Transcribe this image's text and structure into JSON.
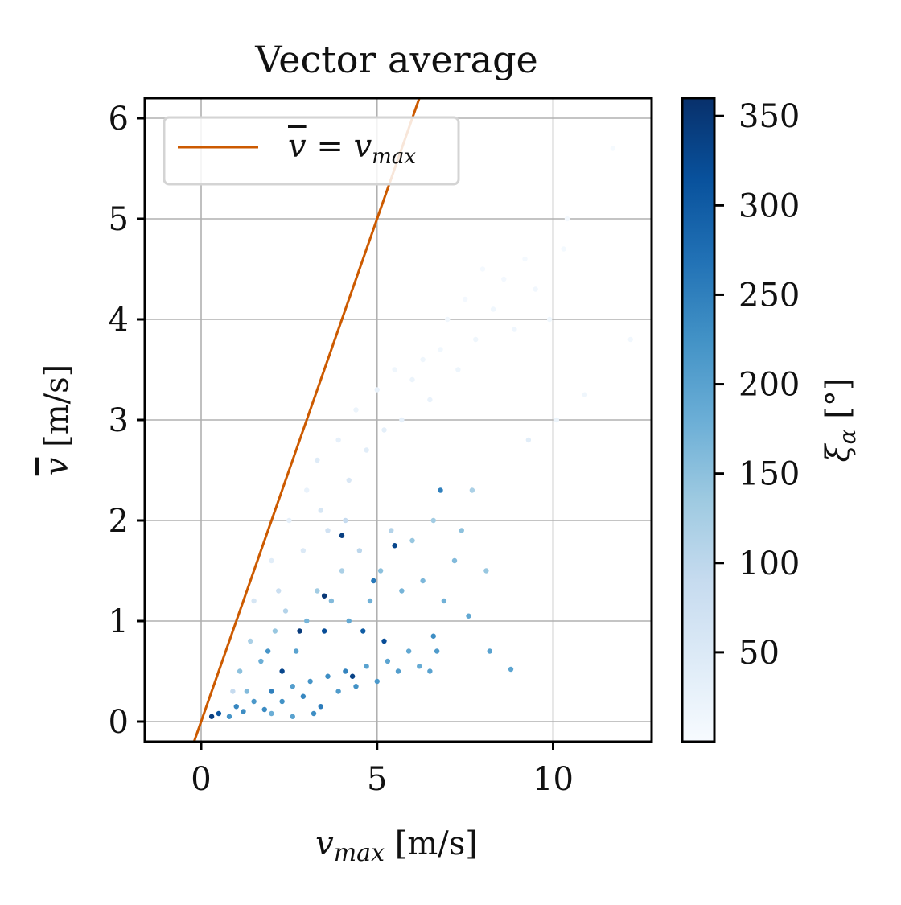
{
  "chart_data": {
    "type": "scatter",
    "title": "Vector average",
    "xlabel": "v_max [m/s]",
    "ylabel": "v̄ [m/s]",
    "xlim": [
      -1.6,
      12.8
    ],
    "ylim": [
      -0.2,
      6.2
    ],
    "xticks": [
      0,
      5,
      10
    ],
    "yticks": [
      0,
      1,
      2,
      3,
      4,
      5,
      6
    ],
    "grid": true,
    "legend": {
      "position": "top-left",
      "entries": [
        {
          "label": "v̄ = v_max",
          "color": "#cc5a00"
        }
      ]
    },
    "reference_line": {
      "name": "v̄ = v_max",
      "slope": 1,
      "intercept": 0,
      "color": "#cc5a00"
    },
    "colorbar": {
      "label": "ξ_α [°]",
      "range": [
        0,
        360
      ],
      "ticks": [
        50,
        100,
        150,
        200,
        250,
        300,
        350
      ],
      "colormap": "Blues",
      "stops": [
        "#f7fbff",
        "#deebf7",
        "#c6dbef",
        "#9ecae1",
        "#6baed6",
        "#4292c6",
        "#2171b5",
        "#08519c",
        "#08306b"
      ]
    },
    "series": [
      {
        "name": "samples",
        "points": [
          [
            0.3,
            0.05,
            340
          ],
          [
            0.5,
            0.08,
            310
          ],
          [
            0.8,
            0.05,
            220
          ],
          [
            1.0,
            0.15,
            240
          ],
          [
            1.2,
            0.1,
            230
          ],
          [
            1.5,
            0.2,
            215
          ],
          [
            1.8,
            0.12,
            235
          ],
          [
            2.0,
            0.3,
            250
          ],
          [
            2.3,
            0.2,
            225
          ],
          [
            2.6,
            0.35,
            205
          ],
          [
            2.9,
            0.25,
            240
          ],
          [
            3.1,
            0.4,
            220
          ],
          [
            3.4,
            0.15,
            255
          ],
          [
            3.6,
            0.45,
            230
          ],
          [
            3.9,
            0.3,
            210
          ],
          [
            4.1,
            0.5,
            245
          ],
          [
            4.4,
            0.35,
            225
          ],
          [
            4.7,
            0.55,
            200
          ],
          [
            5.0,
            0.4,
            215
          ],
          [
            5.3,
            0.6,
            195
          ],
          [
            5.6,
            0.5,
            205
          ],
          [
            5.9,
            0.7,
            190
          ],
          [
            6.2,
            0.55,
            185
          ],
          [
            6.5,
            0.5,
            200
          ],
          [
            1.1,
            0.5,
            150
          ],
          [
            1.4,
            0.8,
            120
          ],
          [
            1.7,
            0.6,
            180
          ],
          [
            2.1,
            0.9,
            140
          ],
          [
            2.4,
            1.1,
            110
          ],
          [
            2.7,
            0.7,
            200
          ],
          [
            3.0,
            1.0,
            170
          ],
          [
            3.3,
            1.3,
            130
          ],
          [
            3.5,
            0.9,
            320
          ],
          [
            3.7,
            1.2,
            160
          ],
          [
            4.0,
            1.5,
            120
          ],
          [
            4.2,
            1.0,
            190
          ],
          [
            4.5,
            1.7,
            100
          ],
          [
            4.8,
            1.2,
            175
          ],
          [
            5.1,
            1.5,
            150
          ],
          [
            5.4,
            1.9,
            110
          ],
          [
            5.7,
            1.3,
            170
          ],
          [
            6.0,
            1.8,
            140
          ],
          [
            6.3,
            1.4,
            165
          ],
          [
            6.6,
            2.0,
            130
          ],
          [
            6.9,
            1.2,
            175
          ],
          [
            7.2,
            1.6,
            160
          ],
          [
            7.4,
            1.9,
            150
          ],
          [
            7.6,
            1.05,
            190
          ],
          [
            8.2,
            0.7,
            200
          ],
          [
            8.8,
            0.52,
            195
          ],
          [
            8.1,
            1.5,
            140
          ],
          [
            6.8,
            2.3,
            250
          ],
          [
            7.7,
            2.3,
            120
          ],
          [
            1.5,
            1.2,
            60
          ],
          [
            2.0,
            1.6,
            40
          ],
          [
            2.5,
            2.0,
            30
          ],
          [
            3.0,
            2.3,
            25
          ],
          [
            3.3,
            2.6,
            45
          ],
          [
            3.6,
            1.9,
            70
          ],
          [
            3.9,
            2.8,
            30
          ],
          [
            4.2,
            2.4,
            55
          ],
          [
            4.4,
            3.1,
            20
          ],
          [
            4.7,
            2.7,
            40
          ],
          [
            5.0,
            3.3,
            25
          ],
          [
            5.2,
            2.9,
            35
          ],
          [
            5.5,
            3.5,
            15
          ],
          [
            5.7,
            3.0,
            30
          ],
          [
            6.0,
            3.4,
            20
          ],
          [
            6.3,
            3.6,
            15
          ],
          [
            6.5,
            3.2,
            25
          ],
          [
            6.8,
            3.7,
            12
          ],
          [
            7.0,
            4.0,
            10
          ],
          [
            7.3,
            3.5,
            18
          ],
          [
            7.5,
            4.2,
            8
          ],
          [
            7.8,
            3.8,
            15
          ],
          [
            8.0,
            4.5,
            6
          ],
          [
            8.3,
            4.1,
            12
          ],
          [
            8.6,
            4.4,
            8
          ],
          [
            8.9,
            3.9,
            14
          ],
          [
            9.2,
            4.6,
            6
          ],
          [
            9.5,
            4.3,
            10
          ],
          [
            9.9,
            4.0,
            12
          ],
          [
            10.4,
            5.0,
            5
          ],
          [
            10.3,
            4.7,
            7
          ],
          [
            10.9,
            3.25,
            15
          ],
          [
            9.3,
            2.8,
            40
          ],
          [
            11.7,
            5.7,
            4
          ],
          [
            12.2,
            3.8,
            10
          ],
          [
            10.1,
            3.0,
            20
          ],
          [
            4.0,
            1.85,
            340
          ],
          [
            3.5,
            1.25,
            350
          ],
          [
            4.6,
            0.9,
            300
          ],
          [
            2.3,
            0.5,
            330
          ],
          [
            5.2,
            0.8,
            320
          ],
          [
            2.8,
            0.9,
            345
          ],
          [
            4.3,
            0.45,
            335
          ],
          [
            6.7,
            0.7,
            210
          ],
          [
            6.6,
            0.85,
            230
          ],
          [
            4.9,
            1.4,
            260
          ],
          [
            5.5,
            1.75,
            330
          ],
          [
            2.0,
            0.08,
            180
          ],
          [
            2.6,
            0.05,
            200
          ],
          [
            3.2,
            0.08,
            230
          ],
          [
            0.9,
            0.3,
            90
          ],
          [
            1.3,
            0.3,
            160
          ],
          [
            1.9,
            0.7,
            220
          ],
          [
            2.2,
            1.3,
            80
          ],
          [
            2.9,
            1.7,
            50
          ],
          [
            3.4,
            2.1,
            60
          ],
          [
            4.1,
            2.0,
            90
          ]
        ]
      }
    ]
  }
}
